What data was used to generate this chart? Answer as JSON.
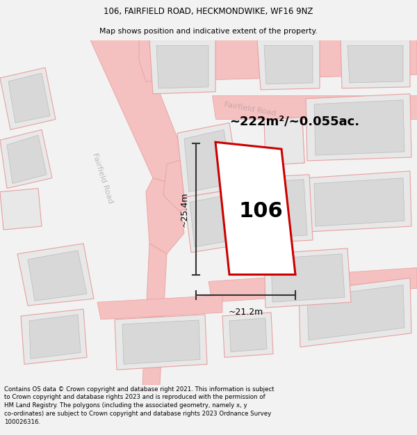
{
  "title_line1": "106, FAIRFIELD ROAD, HECKMONDWIKE, WF16 9NZ",
  "title_line2": "Map shows position and indicative extent of the property.",
  "footer_text": "Contains OS data © Crown copyright and database right 2021. This information is subject to Crown copyright and database rights 2023 and is reproduced with the permission of HM Land Registry. The polygons (including the associated geometry, namely x, y co-ordinates) are subject to Crown copyright and database rights 2023 Ordnance Survey 100026316.",
  "background_color": "#f2f2f2",
  "map_background": "#ffffff",
  "area_label": "~222m²/~0.055ac.",
  "plot_number": "106",
  "dim_width": "~21.2m",
  "dim_height": "~25.4m",
  "road_label_left": "Fairfield Road",
  "road_label_diag": "Fairfield Road",
  "road_color": "#f5c0c0",
  "road_edge_color": "#e8a0a0",
  "building_fill": "#e8e8e8",
  "building_edge": "#cccccc",
  "inner_building_fill": "#d8d8d8",
  "inner_building_edge": "#bbbbbb",
  "plot_fill": "#ffffff",
  "plot_edge": "#cc0000",
  "dim_color": "#333333",
  "road_label_color": "#bbbbbb",
  "road_label_color2": "#c8a8a8"
}
